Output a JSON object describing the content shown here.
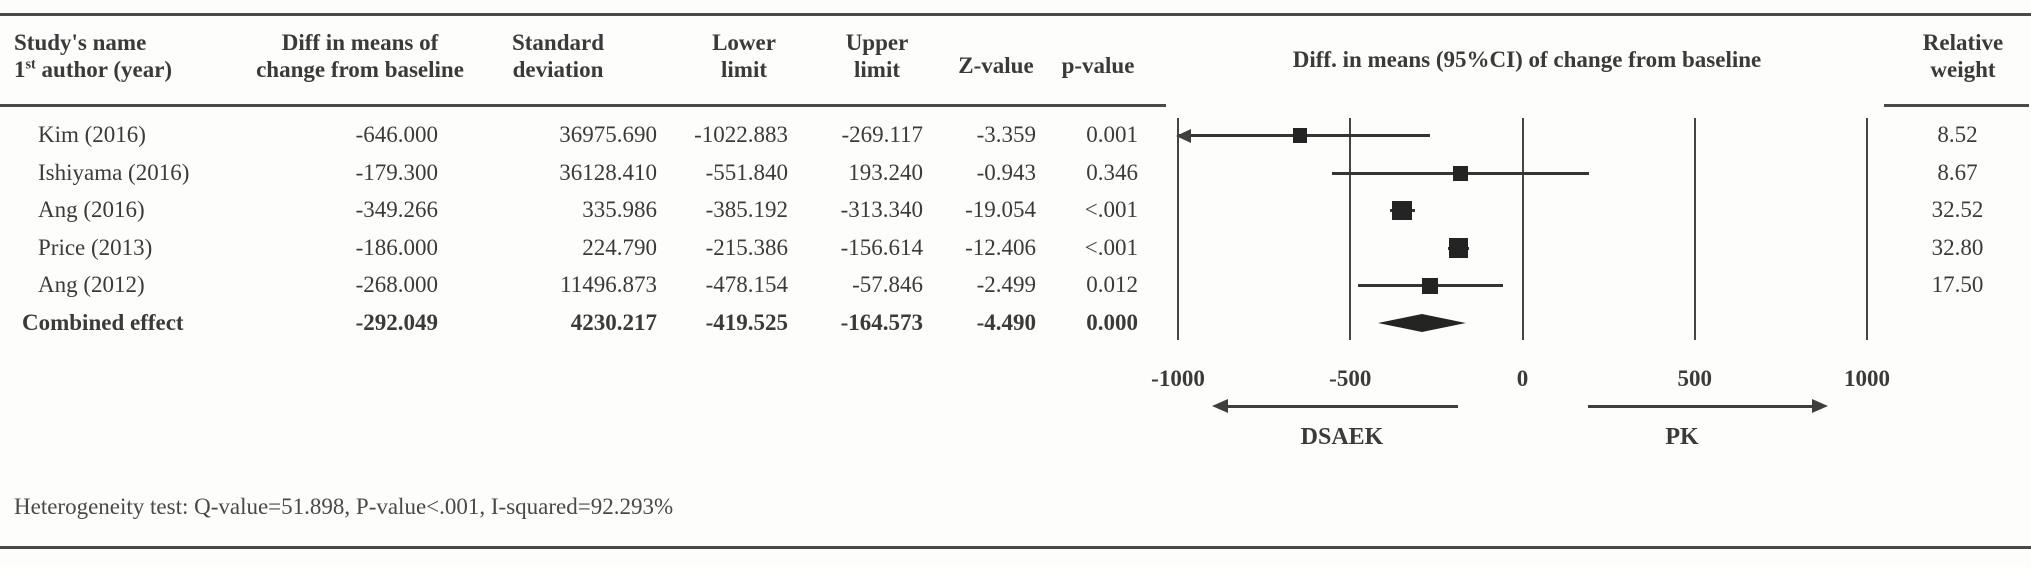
{
  "table": {
    "headers": {
      "study_line1": "Study's name",
      "study_line2_num": "1",
      "study_line2_sup": "st",
      "study_line2_rest": " author (year)",
      "diff": [
        "Diff in means of",
        "change from baseline"
      ],
      "sd": [
        "Standard",
        "deviation"
      ],
      "lower": [
        "Lower",
        "limit"
      ],
      "upper": [
        "Upper",
        "limit"
      ],
      "z": "Z-value",
      "p": "p-value",
      "plot_title": "Diff. in means (95%CI) of change from baseline",
      "weight": [
        "Relative",
        "weight"
      ]
    },
    "rows": [
      {
        "study": "Kim (2016)",
        "diff": "-646.000",
        "sd": "36975.690",
        "lower": "-1022.883",
        "upper": "-269.117",
        "z": "-3.359",
        "p": "0.001",
        "weight": "8.52",
        "bold": false
      },
      {
        "study": "Ishiyama (2016)",
        "diff": "-179.300",
        "sd": "36128.410",
        "lower": "-551.840",
        "upper": "193.240",
        "z": "-0.943",
        "p": "0.346",
        "weight": "8.67",
        "bold": false
      },
      {
        "study": "Ang (2016)",
        "diff": "-349.266",
        "sd": "335.986",
        "lower": "-385.192",
        "upper": "-313.340",
        "z": "-19.054",
        "p": "<.001",
        "weight": "32.52",
        "bold": false
      },
      {
        "study": "Price (2013)",
        "diff": "-186.000",
        "sd": "224.790",
        "lower": "-215.386",
        "upper": "-156.614",
        "z": "-12.406",
        "p": "<.001",
        "weight": "32.80",
        "bold": false
      },
      {
        "study": "Ang (2012)",
        "diff": "-268.000",
        "sd": "11496.873",
        "lower": "-478.154",
        "upper": "-57.846",
        "z": "-2.499",
        "p": "0.012",
        "weight": "17.50",
        "bold": false
      },
      {
        "study": "Combined effect",
        "diff": "-292.049",
        "sd": "4230.217",
        "lower": "-419.525",
        "upper": "-164.573",
        "z": "-4.490",
        "p": "0.000",
        "weight": "",
        "bold": true
      }
    ]
  },
  "chart_data": {
    "type": "forest",
    "title": "Diff. in means (95%CI) of change from baseline",
    "xlim": [
      -1000,
      1000
    ],
    "axis_ticks": [
      "-1000",
      "-500",
      "0",
      "500",
      "1000"
    ],
    "tick_values": [
      -1000,
      -500,
      0,
      500,
      1000
    ],
    "grid": "vertical-lines",
    "studies": [
      {
        "name": "Kim (2016)",
        "mean": -646.0,
        "lower": -1022.883,
        "upper": -269.117,
        "weight": 8.52
      },
      {
        "name": "Ishiyama (2016)",
        "mean": -179.3,
        "lower": -551.84,
        "upper": 193.24,
        "weight": 8.67
      },
      {
        "name": "Ang (2016)",
        "mean": -349.266,
        "lower": -385.192,
        "upper": -313.34,
        "weight": 32.52
      },
      {
        "name": "Price (2013)",
        "mean": -186.0,
        "lower": -215.386,
        "upper": -156.614,
        "weight": 32.8
      },
      {
        "name": "Ang (2012)",
        "mean": -268.0,
        "lower": -478.154,
        "upper": -57.846,
        "weight": 17.5
      }
    ],
    "combined": {
      "name": "Combined effect",
      "mean": -292.049,
      "lower": -419.525,
      "upper": -164.573
    },
    "direction_labels": {
      "left": "DSAEK",
      "right": "PK"
    }
  },
  "footer": {
    "heterogeneity": "Heterogeneity test: Q-value=51.898, P-value<.001, I-squared=92.293%"
  },
  "colors": {
    "rule": "#4a4a4a",
    "text": "#3a3a3a",
    "marker": "#242424",
    "line": "#3f3f3f",
    "background": "#fdfdfc"
  }
}
